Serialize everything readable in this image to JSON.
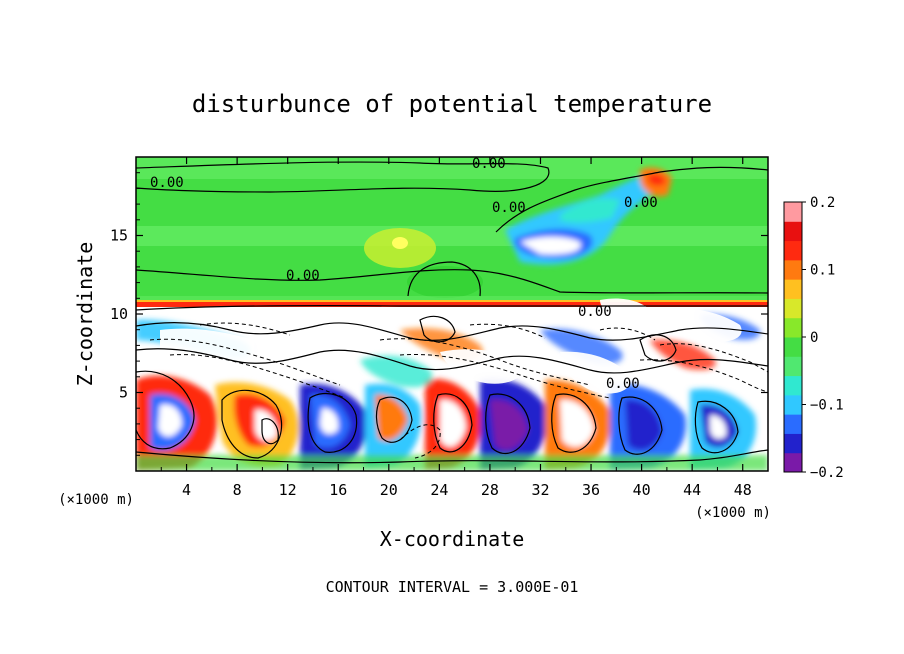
{
  "chart_data": {
    "type": "heatmap",
    "title": "disturbunce of potential temperature",
    "xlabel": "X-coordinate",
    "ylabel": "Z-coordinate",
    "x_unit_label": "(×1000 m)",
    "z_unit_label": "(×1000 m)",
    "xlim": [
      0,
      50
    ],
    "ylim": [
      0,
      20
    ],
    "x_ticks": [
      4,
      8,
      12,
      16,
      20,
      24,
      28,
      32,
      36,
      40,
      44,
      48
    ],
    "x_tick_labels": [
      "4",
      "8",
      "12",
      "16",
      "20",
      "24",
      "28",
      "32",
      "36",
      "40",
      "44",
      "48"
    ],
    "y_ticks": [
      5,
      10,
      15
    ],
    "y_tick_labels": [
      "5",
      "10",
      "15"
    ],
    "colorbar": {
      "range": [
        -0.2,
        0.2
      ],
      "ticks": [
        0.2,
        0.1,
        0,
        -0.1,
        -0.2
      ],
      "tick_labels": [
        "0.2",
        "0.1",
        "0",
        "−0.1",
        "−0.2"
      ],
      "colors": [
        "#7a1aa8",
        "#2222cc",
        "#2a6cff",
        "#30c8ff",
        "#30e8d0",
        "#50e870",
        "#44dd44",
        "#88e82a",
        "#d8e82a",
        "#ffc020",
        "#ff7a10",
        "#ff2a10",
        "#e81010",
        "#ff9aa0"
      ]
    },
    "contour_labels": [
      "0.00",
      "0.00",
      "0.00",
      "0.00",
      "0.00",
      "0.00",
      "0.00"
    ],
    "footnote": "CONTOUR INTERVAL = 3.000E-01",
    "grid": false
  }
}
